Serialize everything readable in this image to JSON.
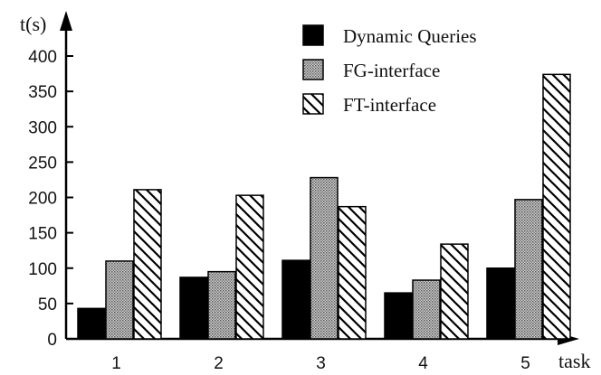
{
  "chart_data": {
    "type": "bar",
    "ylabel": "t(s)",
    "xlabel": "task",
    "categories": [
      "1",
      "2",
      "3",
      "4",
      "5"
    ],
    "yticks": [
      0,
      50,
      100,
      150,
      200,
      250,
      300,
      350,
      400
    ],
    "ylim": [
      0,
      400
    ],
    "grid": false,
    "legend_position": "top-right",
    "series": [
      {
        "name": "Dynamic Queries",
        "pattern": "solid-black",
        "values": [
          43,
          87,
          111,
          65,
          100
        ]
      },
      {
        "name": "FG-interface",
        "pattern": "dotted-gray",
        "values": [
          110,
          95,
          228,
          83,
          197
        ]
      },
      {
        "name": "FT-interface",
        "pattern": "diagonal-hatch",
        "values": [
          211,
          203,
          187,
          134,
          374
        ]
      }
    ]
  }
}
